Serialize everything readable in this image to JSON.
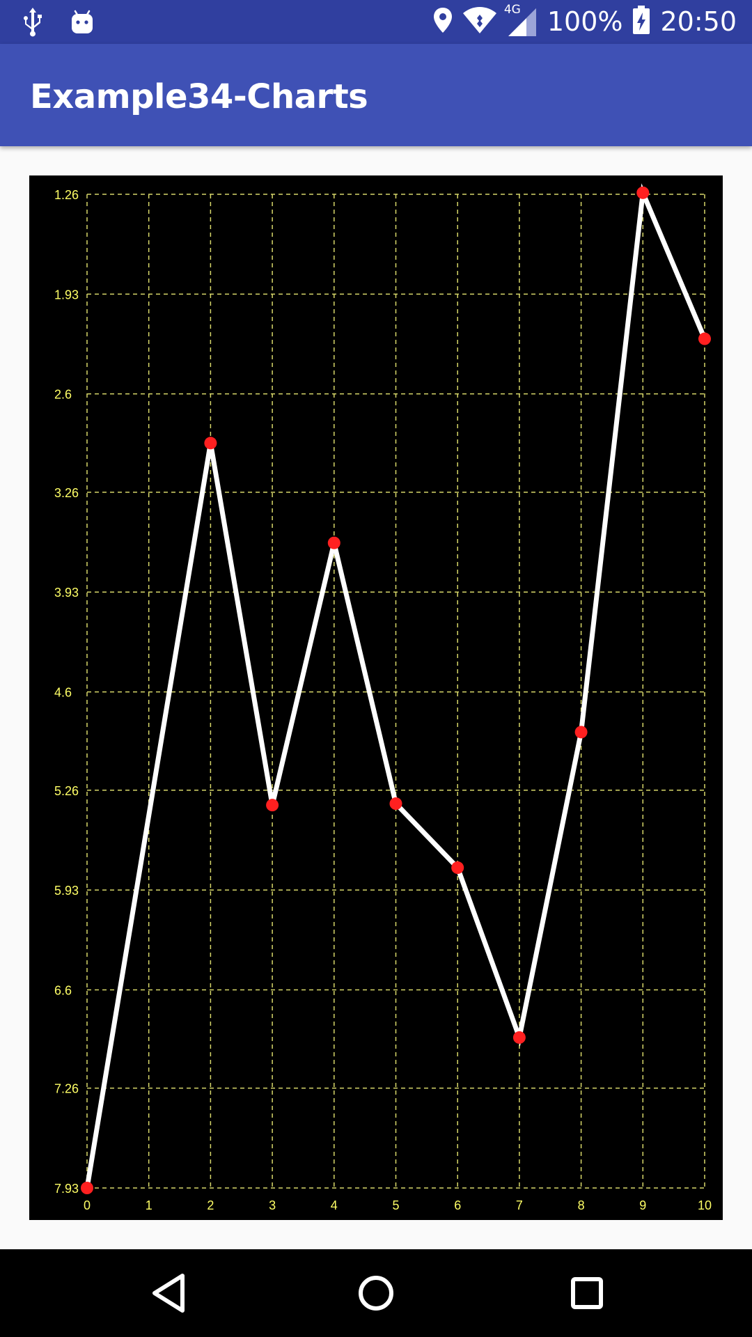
{
  "status_bar": {
    "battery_text": "100%",
    "network_type": "4G",
    "time": "20:50",
    "icons": [
      "usb-icon",
      "android-icon",
      "location-icon",
      "wifi-icon",
      "signal-icon",
      "battery-charging-icon"
    ]
  },
  "app_bar": {
    "title": "Example34-Charts"
  },
  "chart_data": {
    "type": "line",
    "x_ticks": [
      "0",
      "1",
      "2",
      "3",
      "4",
      "5",
      "6",
      "7",
      "8",
      "9",
      "10"
    ],
    "y_ticks": [
      "1.26",
      "1.93",
      "2.6",
      "3.26",
      "3.93",
      "4.6",
      "5.26",
      "5.93",
      "6.6",
      "7.26",
      "7.93"
    ],
    "y_tick_values": [
      1.26,
      1.93,
      2.6,
      3.26,
      3.93,
      4.6,
      5.26,
      5.93,
      6.6,
      7.26,
      7.93
    ],
    "y_inverted": true,
    "xlim": [
      0,
      10
    ],
    "ylim": [
      1.26,
      7.93
    ],
    "x": [
      0,
      2,
      3,
      4,
      5,
      6,
      7,
      8,
      9,
      10
    ],
    "y": [
      7.93,
      2.93,
      5.36,
      3.6,
      5.35,
      5.78,
      6.92,
      4.87,
      1.25,
      2.23
    ],
    "grid": true,
    "colors": {
      "background": "#000000",
      "grid": "#d8d86a",
      "tick_label": "#ffff66",
      "line": "#ffffff",
      "marker": "#ff2020"
    }
  },
  "nav_bar": {
    "icons": [
      "back-icon",
      "home-icon",
      "recents-icon"
    ]
  }
}
